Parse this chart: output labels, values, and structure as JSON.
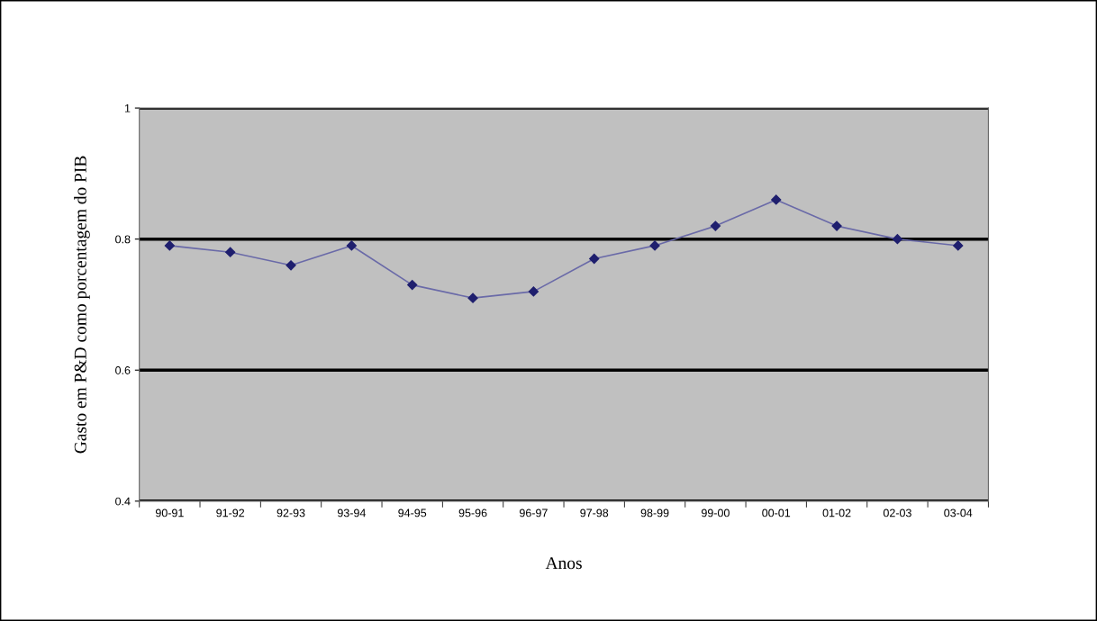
{
  "chart_data": {
    "type": "line",
    "xlabel": "Anos",
    "ylabel": "Gasto em P&D como porcentagem do PIB",
    "categories": [
      "90-91",
      "91-92",
      "92-93",
      "93-94",
      "94-95",
      "95-96",
      "96-97",
      "97-98",
      "98-99",
      "99-00",
      "00-01",
      "01-02",
      "02-03",
      "03-04"
    ],
    "series": [
      {
        "color": "#1f1f6e",
        "values": [
          0.79,
          0.78,
          0.76,
          0.79,
          0.73,
          0.71,
          0.72,
          0.77,
          0.79,
          0.82,
          0.86,
          0.82,
          0.8,
          0.79
        ]
      }
    ],
    "ylim": [
      0.4,
      1
    ],
    "yticks": [
      0.4,
      0.6,
      0.8,
      1
    ],
    "grid": "y",
    "marker": "diamond",
    "line_style": "solid"
  }
}
